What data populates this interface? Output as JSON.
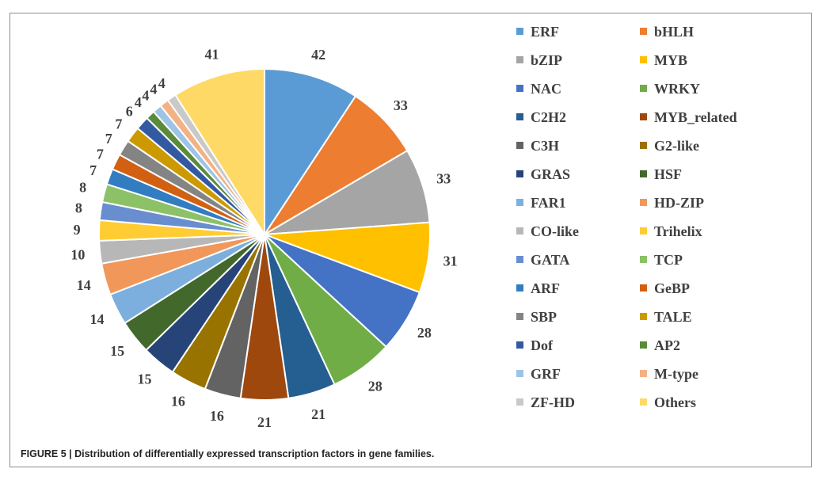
{
  "chart_data": {
    "type": "pie",
    "title": "",
    "start_angle": "12 o'clock, clockwise",
    "slices": [
      {
        "label": "ERF",
        "value": 42,
        "color": "#5B9BD5"
      },
      {
        "label": "bHLH",
        "value": 33,
        "color": "#ED7D31"
      },
      {
        "label": "bZIP",
        "value": 33,
        "color": "#A5A5A5"
      },
      {
        "label": "MYB",
        "value": 31,
        "color": "#FFC000"
      },
      {
        "label": "NAC",
        "value": 28,
        "color": "#4472C4"
      },
      {
        "label": "WRKY",
        "value": 28,
        "color": "#70AD47"
      },
      {
        "label": "C2H2",
        "value": 21,
        "color": "#255E91"
      },
      {
        "label": "MYB_related",
        "value": 21,
        "color": "#9E480E"
      },
      {
        "label": "C3H",
        "value": 16,
        "color": "#636363"
      },
      {
        "label": "G2-like",
        "value": 16,
        "color": "#997300"
      },
      {
        "label": "GRAS",
        "value": 15,
        "color": "#264478"
      },
      {
        "label": "HSF",
        "value": 15,
        "color": "#43682B"
      },
      {
        "label": "FAR1",
        "value": 14,
        "color": "#7CAFDD"
      },
      {
        "label": "HD-ZIP",
        "value": 14,
        "color": "#F1975A"
      },
      {
        "label": "CO-like",
        "value": 10,
        "color": "#B7B7B7"
      },
      {
        "label": "Trihelix",
        "value": 9,
        "color": "#FFCD33"
      },
      {
        "label": "GATA",
        "value": 8,
        "color": "#698ED0"
      },
      {
        "label": "TCP",
        "value": 8,
        "color": "#8CC168"
      },
      {
        "label": "ARF",
        "value": 7,
        "color": "#327DC2"
      },
      {
        "label": "GeBP",
        "value": 7,
        "color": "#D26012"
      },
      {
        "label": "SBP",
        "value": 7,
        "color": "#848484"
      },
      {
        "label": "TALE",
        "value": 7,
        "color": "#CC9A00"
      },
      {
        "label": "Dof",
        "value": 6,
        "color": "#335AA1"
      },
      {
        "label": "AP2",
        "value": 4,
        "color": "#5A8B39"
      },
      {
        "label": "GRF",
        "value": 4,
        "color": "#9DC3E6"
      },
      {
        "label": "M-type",
        "value": 4,
        "color": "#F4B183"
      },
      {
        "label": "ZF-HD",
        "value": 4,
        "color": "#C9C9C9"
      },
      {
        "label": "Others",
        "value": 41,
        "color": "#FFD966"
      }
    ],
    "legend_position": "right",
    "label_color": "#404040"
  },
  "caption": "FIGURE 5 | Distribution of differentially expressed transcription factors in gene families."
}
